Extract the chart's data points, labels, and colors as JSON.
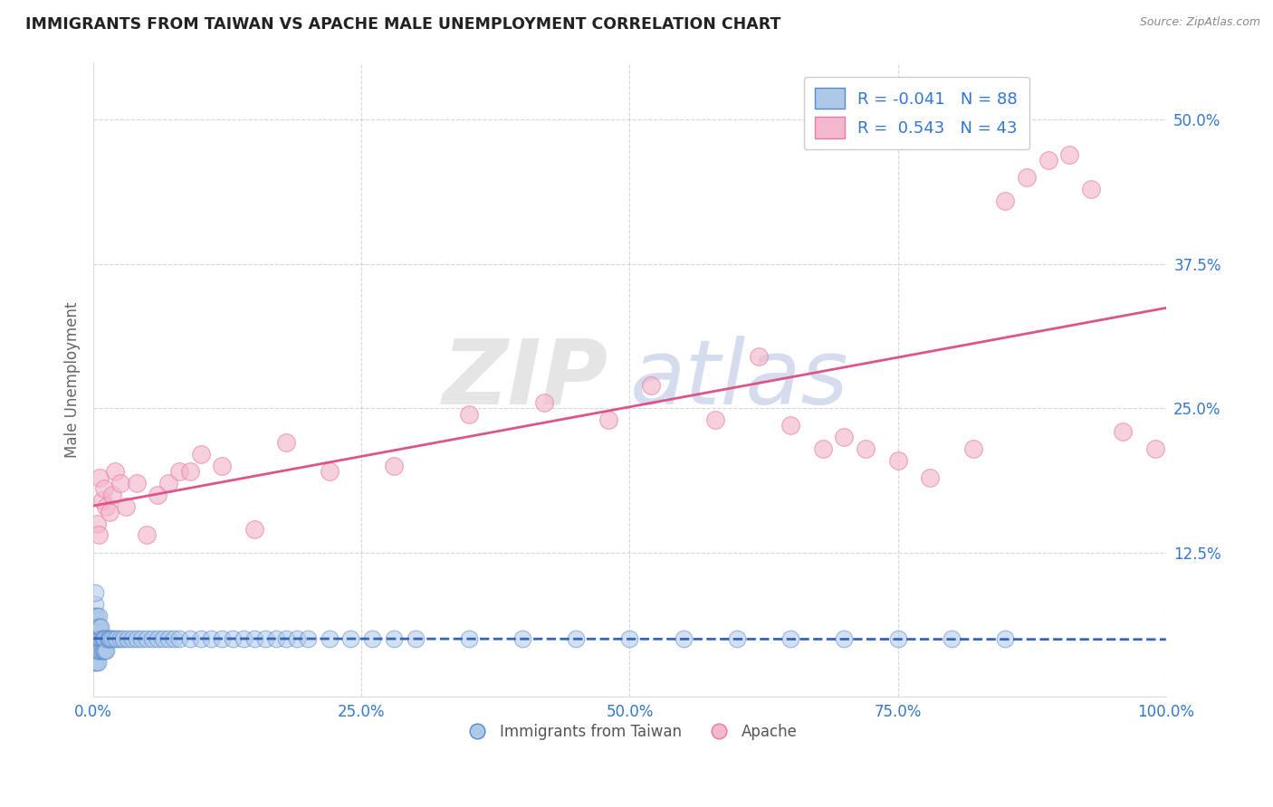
{
  "title": "IMMIGRANTS FROM TAIWAN VS APACHE MALE UNEMPLOYMENT CORRELATION CHART",
  "source": "Source: ZipAtlas.com",
  "ylabel": "Male Unemployment",
  "legend_label_blue": "Immigrants from Taiwan",
  "legend_label_pink": "Apache",
  "R_blue": -0.041,
  "N_blue": 88,
  "R_pink": 0.543,
  "N_pink": 43,
  "blue_color": "#aec8e8",
  "pink_color": "#f4b8cc",
  "blue_edge_color": "#5588cc",
  "pink_edge_color": "#e878a8",
  "blue_line_color": "#3366bb",
  "pink_line_color": "#dd5588",
  "xlim": [
    0.0,
    1.0
  ],
  "ylim": [
    0.0,
    0.55
  ],
  "x_ticks": [
    0.0,
    0.25,
    0.5,
    0.75,
    1.0
  ],
  "x_tick_labels": [
    "0.0%",
    "25.0%",
    "50.0%",
    "75.0%",
    "100.0%"
  ],
  "y_ticks": [
    0.0,
    0.125,
    0.25,
    0.375,
    0.5
  ],
  "y_tick_labels": [
    "",
    "12.5%",
    "25.0%",
    "37.5%",
    "50.0%"
  ],
  "watermark_zip": "ZIP",
  "watermark_atlas": "atlas",
  "watermark_zip_color": "#cccccc",
  "watermark_atlas_color": "#aabbdd",
  "blue_scatter_x": [
    0.001,
    0.001,
    0.001,
    0.001,
    0.001,
    0.002,
    0.002,
    0.002,
    0.002,
    0.002,
    0.002,
    0.002,
    0.003,
    0.003,
    0.003,
    0.003,
    0.003,
    0.004,
    0.004,
    0.004,
    0.004,
    0.005,
    0.005,
    0.005,
    0.005,
    0.006,
    0.006,
    0.006,
    0.007,
    0.007,
    0.007,
    0.008,
    0.008,
    0.009,
    0.009,
    0.01,
    0.01,
    0.011,
    0.011,
    0.012,
    0.013,
    0.014,
    0.015,
    0.016,
    0.018,
    0.02,
    0.022,
    0.025,
    0.028,
    0.032,
    0.036,
    0.04,
    0.045,
    0.05,
    0.055,
    0.06,
    0.065,
    0.07,
    0.075,
    0.08,
    0.09,
    0.1,
    0.11,
    0.12,
    0.13,
    0.14,
    0.15,
    0.16,
    0.17,
    0.18,
    0.19,
    0.2,
    0.22,
    0.24,
    0.26,
    0.28,
    0.3,
    0.35,
    0.4,
    0.45,
    0.5,
    0.55,
    0.6,
    0.65,
    0.7,
    0.75,
    0.8,
    0.85
  ],
  "blue_scatter_y": [
    0.03,
    0.04,
    0.05,
    0.06,
    0.07,
    0.03,
    0.04,
    0.05,
    0.06,
    0.07,
    0.08,
    0.09,
    0.03,
    0.04,
    0.05,
    0.06,
    0.07,
    0.03,
    0.04,
    0.05,
    0.06,
    0.04,
    0.05,
    0.06,
    0.07,
    0.04,
    0.05,
    0.06,
    0.04,
    0.05,
    0.06,
    0.04,
    0.05,
    0.04,
    0.05,
    0.04,
    0.05,
    0.04,
    0.05,
    0.04,
    0.05,
    0.05,
    0.05,
    0.05,
    0.05,
    0.05,
    0.05,
    0.05,
    0.05,
    0.05,
    0.05,
    0.05,
    0.05,
    0.05,
    0.05,
    0.05,
    0.05,
    0.05,
    0.05,
    0.05,
    0.05,
    0.05,
    0.05,
    0.05,
    0.05,
    0.05,
    0.05,
    0.05,
    0.05,
    0.05,
    0.05,
    0.05,
    0.05,
    0.05,
    0.05,
    0.05,
    0.05,
    0.05,
    0.05,
    0.05,
    0.05,
    0.05,
    0.05,
    0.05,
    0.05,
    0.05,
    0.05,
    0.05
  ],
  "pink_scatter_x": [
    0.003,
    0.005,
    0.006,
    0.008,
    0.01,
    0.012,
    0.015,
    0.018,
    0.02,
    0.025,
    0.03,
    0.04,
    0.05,
    0.06,
    0.07,
    0.08,
    0.09,
    0.1,
    0.12,
    0.15,
    0.18,
    0.22,
    0.28,
    0.35,
    0.42,
    0.48,
    0.52,
    0.58,
    0.62,
    0.65,
    0.68,
    0.7,
    0.72,
    0.75,
    0.78,
    0.82,
    0.85,
    0.87,
    0.89,
    0.91,
    0.93,
    0.96,
    0.99
  ],
  "pink_scatter_y": [
    0.15,
    0.14,
    0.19,
    0.17,
    0.18,
    0.165,
    0.16,
    0.175,
    0.195,
    0.185,
    0.165,
    0.185,
    0.14,
    0.175,
    0.185,
    0.195,
    0.195,
    0.21,
    0.2,
    0.145,
    0.22,
    0.195,
    0.2,
    0.245,
    0.255,
    0.24,
    0.27,
    0.24,
    0.295,
    0.235,
    0.215,
    0.225,
    0.215,
    0.205,
    0.19,
    0.215,
    0.43,
    0.45,
    0.465,
    0.47,
    0.44,
    0.23,
    0.215
  ]
}
